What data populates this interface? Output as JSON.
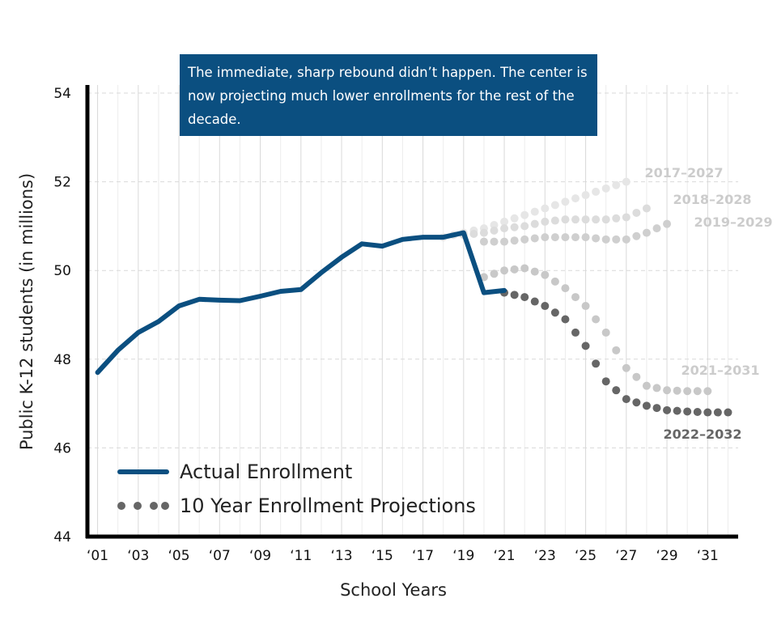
{
  "callout": {
    "text": "The immediate, sharp rebound didn’t happen. The center is now projecting much lower enrollments for the rest of the decade."
  },
  "legend": {
    "actual": "Actual Enrollment",
    "projections": "10 Year Enrollment Projections"
  },
  "colors": {
    "actual": "#0b4f80",
    "grid": "#d9d9d9",
    "p2017": "#e6e6e6",
    "p2018": "#dcdcdc",
    "p2019": "#cfcfcf",
    "p2021": "#c8c8c8",
    "p2022": "#666666",
    "label_light": "#cccccc",
    "label_dark": "#666666"
  },
  "chart_data": {
    "type": "line",
    "title": "",
    "xlabel": "School Years",
    "ylabel": "Public K-12 students (in millions)",
    "ylim": [
      44,
      54
    ],
    "xlim": [
      2000.5,
      2032.5
    ],
    "yticks": [
      "44",
      "46",
      "48",
      "50",
      "52",
      "54"
    ],
    "xticks": [
      {
        "x": 2001,
        "label": "‘01"
      },
      {
        "x": 2003,
        "label": "‘03"
      },
      {
        "x": 2005,
        "label": "‘05"
      },
      {
        "x": 2007,
        "label": "‘07"
      },
      {
        "x": 2009,
        "label": "‘09"
      },
      {
        "x": 2011,
        "label": "‘11"
      },
      {
        "x": 2013,
        "label": "‘13"
      },
      {
        "x": 2015,
        "label": "‘15"
      },
      {
        "x": 2017,
        "label": "‘17"
      },
      {
        "x": 2019,
        "label": "‘19"
      },
      {
        "x": 2021,
        "label": "‘21"
      },
      {
        "x": 2023,
        "label": "‘23"
      },
      {
        "x": 2025,
        "label": "‘25"
      },
      {
        "x": 2027,
        "label": "‘27"
      },
      {
        "x": 2029,
        "label": "‘29"
      },
      {
        "x": 2031,
        "label": "‘31"
      }
    ],
    "grid": true,
    "series": [
      {
        "name": "Actual Enrollment",
        "style": "solid",
        "color_key": "actual",
        "x": [
          2001,
          2002,
          2003,
          2004,
          2005,
          2006,
          2007,
          2008,
          2009,
          2010,
          2011,
          2012,
          2013,
          2014,
          2015,
          2016,
          2017,
          2018,
          2019,
          2020,
          2021
        ],
        "y": [
          47.7,
          48.2,
          48.6,
          48.85,
          49.2,
          49.35,
          49.33,
          49.32,
          49.42,
          49.53,
          49.57,
          49.95,
          50.3,
          50.6,
          50.55,
          50.7,
          50.75,
          50.75,
          50.85,
          49.5,
          49.55
        ]
      },
      {
        "name": "2017-2027",
        "label": "2017–2027",
        "style": "dotted",
        "color_key": "p2017",
        "label_color_key": "label_light",
        "x": [
          2018,
          2019,
          2020,
          2021,
          2022,
          2023,
          2024,
          2025,
          2026,
          2027
        ],
        "y": [
          50.75,
          50.85,
          50.95,
          51.1,
          51.25,
          51.4,
          51.55,
          51.7,
          51.85,
          52.0
        ]
      },
      {
        "name": "2018-2028",
        "label": "2018–2028",
        "style": "dotted",
        "color_key": "p2018",
        "label_color_key": "label_light",
        "x": [
          2019,
          2020,
          2021,
          2022,
          2023,
          2024,
          2025,
          2026,
          2027,
          2028
        ],
        "y": [
          50.8,
          50.85,
          50.95,
          51.0,
          51.1,
          51.15,
          51.15,
          51.15,
          51.2,
          51.4
        ]
      },
      {
        "name": "2019-2029",
        "label": "2019–2029",
        "style": "dotted",
        "color_key": "p2019",
        "label_color_key": "label_light",
        "x": [
          2020,
          2021,
          2022,
          2023,
          2024,
          2025,
          2026,
          2027,
          2028,
          2029
        ],
        "y": [
          50.65,
          50.65,
          50.7,
          50.75,
          50.75,
          50.75,
          50.7,
          50.7,
          50.85,
          51.05
        ]
      },
      {
        "name": "2021-2031",
        "label": "2021–2031",
        "style": "dotted",
        "color_key": "p2021",
        "label_color_key": "label_light",
        "x": [
          2020,
          2021,
          2022,
          2023,
          2024,
          2025,
          2026,
          2027,
          2028,
          2029,
          2030,
          2031
        ],
        "y": [
          49.85,
          50.0,
          50.05,
          49.9,
          49.6,
          49.2,
          48.6,
          47.8,
          47.4,
          47.3,
          47.28,
          47.28
        ]
      },
      {
        "name": "2022-2032",
        "label": "2022–2032",
        "style": "dotted",
        "color_key": "p2022",
        "label_color_key": "label_dark",
        "x": [
          2021,
          2022,
          2023,
          2024,
          2025,
          2026,
          2027,
          2028,
          2029,
          2030,
          2031,
          2032
        ],
        "y": [
          49.5,
          49.4,
          49.2,
          48.9,
          48.3,
          47.5,
          47.1,
          46.95,
          46.85,
          46.82,
          46.8,
          46.8
        ]
      }
    ]
  }
}
